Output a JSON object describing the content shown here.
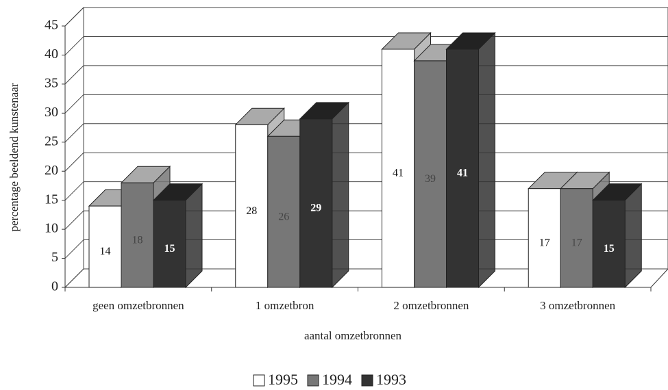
{
  "chart_data": {
    "type": "bar3d",
    "categories": [
      "geen omzetbronnen",
      "1 omzetbron",
      "2 omzetbronnen",
      "3 omzetbronnen"
    ],
    "series": [
      {
        "name": "1995",
        "color": "#ffffff",
        "values": [
          14,
          28,
          41,
          17
        ]
      },
      {
        "name": "1994",
        "color": "#777777",
        "values": [
          18,
          26,
          39,
          17
        ]
      },
      {
        "name": "1993",
        "color": "#333333",
        "values": [
          15,
          29,
          41,
          15
        ]
      }
    ],
    "ylabel": "percentage beeldend kunstenaar",
    "xlabel": "aantal omzetbronnen",
    "ylim": [
      0,
      45
    ],
    "yticks": [
      0,
      5,
      10,
      15,
      20,
      25,
      30,
      35,
      40,
      45
    ],
    "grid": true,
    "legend": "bottom"
  }
}
